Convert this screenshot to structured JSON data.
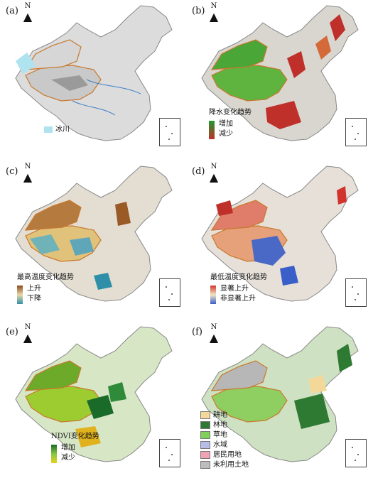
{
  "panels": [
    {
      "id": "a",
      "label": "(a)",
      "legend": {
        "items": [
          {
            "label": "冰川",
            "color": "#aee3ef"
          }
        ]
      }
    },
    {
      "id": "b",
      "label": "(b)",
      "legend": {
        "title": "降水变化趋势",
        "high": "增加",
        "low": "减少",
        "high_color": "#1f9a2e",
        "low_color": "#c0302a"
      }
    },
    {
      "id": "c",
      "label": "(c)",
      "legend": {
        "title": "最高温度变化趋势",
        "high": "上升",
        "low": "下降",
        "high_color": "#8a4a1c",
        "low_color": "#2f8fa8"
      }
    },
    {
      "id": "d",
      "label": "(d)",
      "legend": {
        "title": "最低温度变化趋势",
        "high": "显著上升",
        "low": "非显著上升",
        "high_color": "#d0342c",
        "low_color": "#3a5fc8"
      }
    },
    {
      "id": "e",
      "label": "(e)",
      "legend": {
        "title": "NDVI变化趋势",
        "high": "增加",
        "low": "减少",
        "high_color": "#1a6b2a",
        "low_color": "#e8d21e"
      }
    },
    {
      "id": "f",
      "label": "(f)",
      "legend": {
        "items": [
          {
            "label": "耕地",
            "color": "#f3d89a"
          },
          {
            "label": "林地",
            "color": "#2f7a32"
          },
          {
            "label": "草地",
            "color": "#7fd15a"
          },
          {
            "label": "水域",
            "color": "#b7bde6"
          },
          {
            "label": "居民用地",
            "color": "#f2a3b3"
          },
          {
            "label": "未利用土地",
            "color": "#bdbdbd"
          }
        ]
      }
    }
  ],
  "north_letter": "N",
  "icons": {
    "north": "north-arrow-icon",
    "inset": "south-china-sea-inset"
  }
}
